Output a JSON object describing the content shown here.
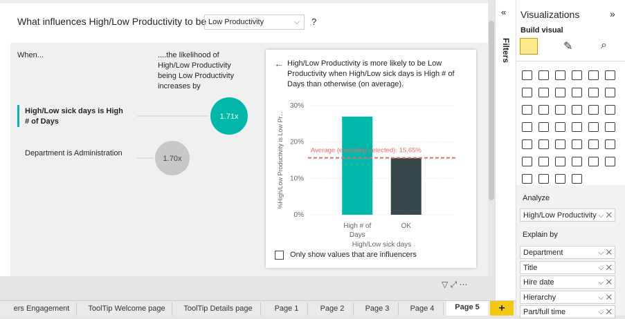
{
  "header": {
    "question": "What influences High/Low Productivity to be",
    "dropdown": "Low Productivity",
    "suffix": "?"
  },
  "influencers": {
    "when_label": "When...",
    "likelihood_label": "....the likelihood of High/Low Productivity being Low Productivity increases by",
    "items": [
      {
        "label": "High/Low sick days is High # of Days",
        "value_label": "1.71x"
      },
      {
        "label": "Department is Administration",
        "value_label": "1.70x"
      }
    ]
  },
  "detail": {
    "description": "High/Low Productivity is more likely to be Low Productivity when High/Low sick days is High # of Days than otherwise (on average).",
    "checkbox": "Only show values that are influencers"
  },
  "chart_data": {
    "type": "bar",
    "y_label": "%High/Low Productivity is Low Pr...",
    "x_label": "High/Low sick days",
    "categories": [
      "High # of Days",
      "OK"
    ],
    "series": [
      {
        "name": "Low Productivity",
        "colors": [
          "#01b8aa",
          "#374649"
        ],
        "values": [
          27,
          15.6
        ]
      }
    ],
    "ylim": [
      0,
      30
    ],
    "yticks": [
      {
        "value": 0,
        "label": "0%"
      },
      {
        "value": 10,
        "label": "10%"
      },
      {
        "value": 20,
        "label": "20%"
      },
      {
        "value": 30,
        "label": "30%"
      }
    ],
    "grid": true,
    "average": {
      "value": 15.65,
      "label": "Average (excluding selected): 15.65%",
      "color": "#e66c6c"
    }
  },
  "filters": "Filters",
  "visualizations": {
    "title": "Visualizations",
    "build": "Build visual",
    "analyze": "Analyze",
    "analyze_field": "High/Low Productivity",
    "explain_by": "Explain by",
    "fields": [
      "Department",
      "Title",
      "Hire date",
      "Hierarchy",
      "Part/full time"
    ]
  },
  "tabs": [
    "ers Engagement",
    "ToolTip Welcome page",
    "ToolTip Details page",
    "Page 1",
    "Page 2",
    "Page 3",
    "Page 4",
    "Page 5"
  ]
}
